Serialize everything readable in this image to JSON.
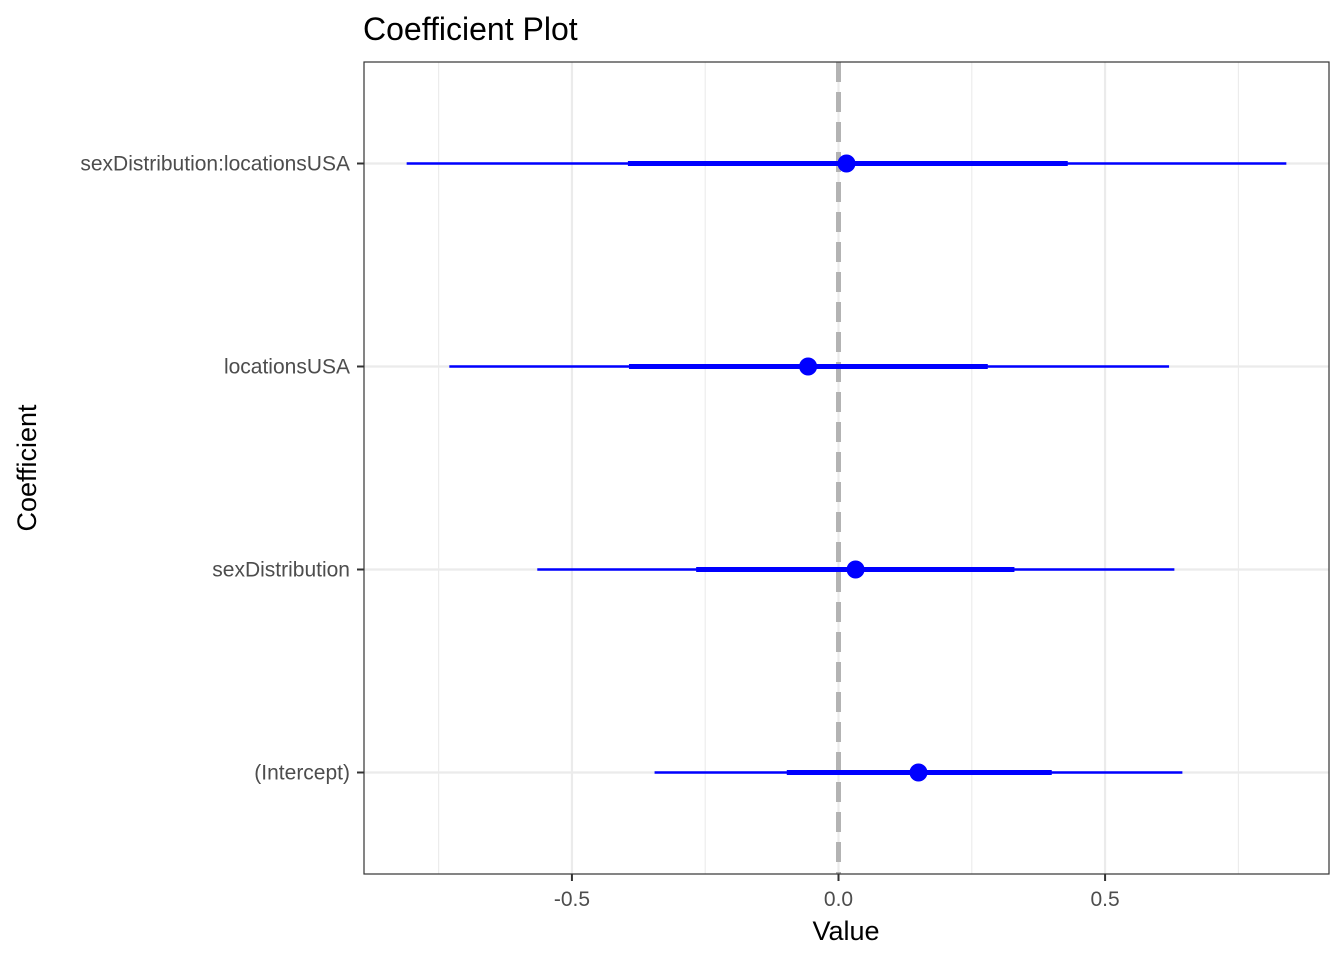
{
  "chart_data": {
    "type": "coefficient-plot",
    "title": "Coefficient Plot",
    "xlabel": "Value",
    "ylabel": "Coefficient",
    "xlim": [
      -0.89,
      0.92
    ],
    "x_ticks": [
      -0.5,
      0.0,
      0.5
    ],
    "x_tick_labels": [
      "-0.5",
      "0.0",
      "0.5"
    ],
    "reference_line": 0,
    "grid": true,
    "point_color": "#0000ff",
    "reference_color": "#b3b3b3",
    "coefficients": [
      {
        "name": "sexDistribution:locationsUSA",
        "value": 0.015,
        "inner": [
          -0.395,
          0.43
        ],
        "outer": [
          -0.81,
          0.84
        ]
      },
      {
        "name": "locationsUSA",
        "value": -0.057,
        "inner": [
          -0.393,
          0.28
        ],
        "outer": [
          -0.73,
          0.62
        ]
      },
      {
        "name": "sexDistribution",
        "value": 0.032,
        "inner": [
          -0.267,
          0.33
        ],
        "outer": [
          -0.565,
          0.63
        ]
      },
      {
        "name": "(Intercept)",
        "value": 0.15,
        "inner": [
          -0.097,
          0.4
        ],
        "outer": [
          -0.345,
          0.645
        ]
      }
    ]
  }
}
